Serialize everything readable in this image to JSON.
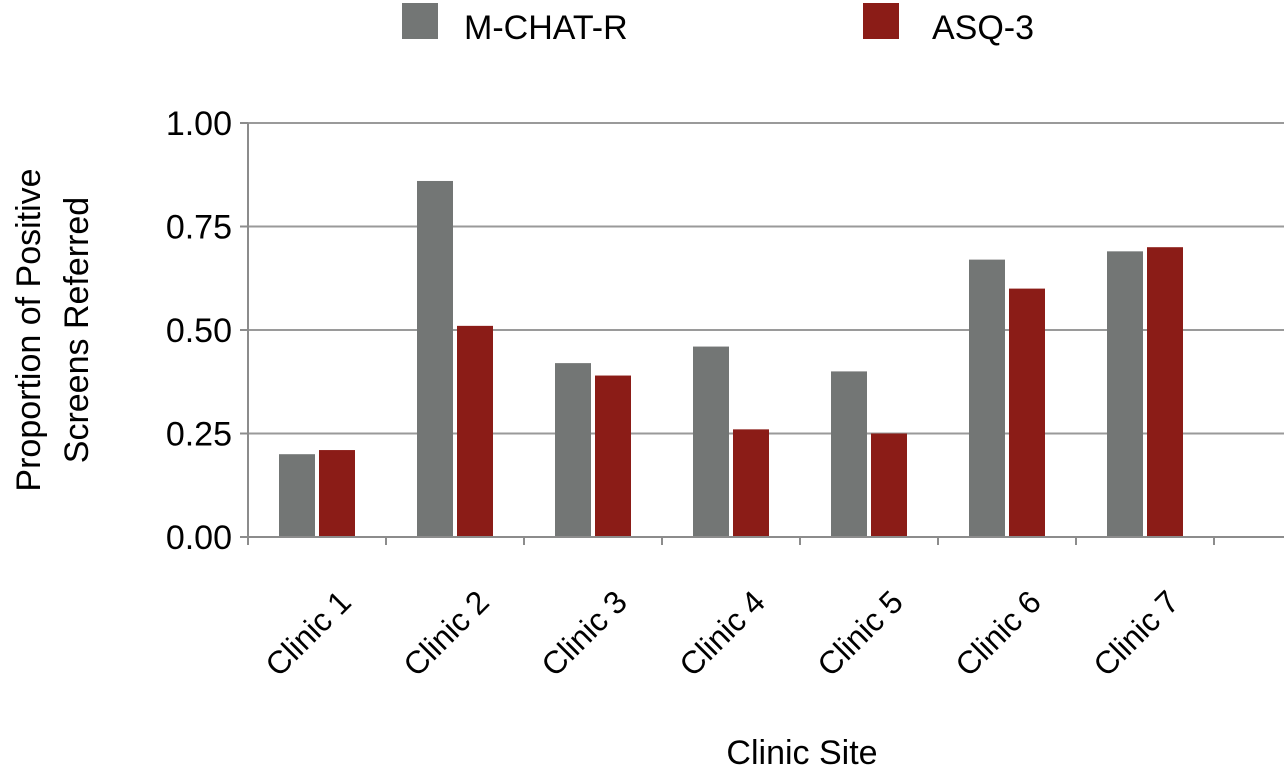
{
  "chart_data": {
    "type": "bar",
    "xlabel": "Clinic Site",
    "ylabel_lines": [
      "Proportion of Positive",
      "Screens Referred"
    ],
    "categories": [
      "Clinic 1",
      "Clinic 2",
      "Clinic 3",
      "Clinic 4",
      "Clinic 5",
      "Clinic 6",
      "Clinic 7"
    ],
    "series": [
      {
        "name": "M-CHAT-R",
        "color": "#737675",
        "values": [
          0.2,
          0.86,
          0.42,
          0.46,
          0.4,
          0.67,
          0.69
        ]
      },
      {
        "name": "ASQ-3",
        "color": "#8b1c17",
        "values": [
          0.21,
          0.51,
          0.39,
          0.26,
          0.25,
          0.6,
          0.7
        ]
      }
    ],
    "ylim": [
      0,
      1
    ],
    "yticks": [
      "0.00",
      "0.25",
      "0.50",
      "0.75",
      "1.00"
    ],
    "ytick_values": [
      0,
      0.25,
      0.5,
      0.75,
      1.0
    ],
    "grid": true,
    "legend_position": "top"
  }
}
